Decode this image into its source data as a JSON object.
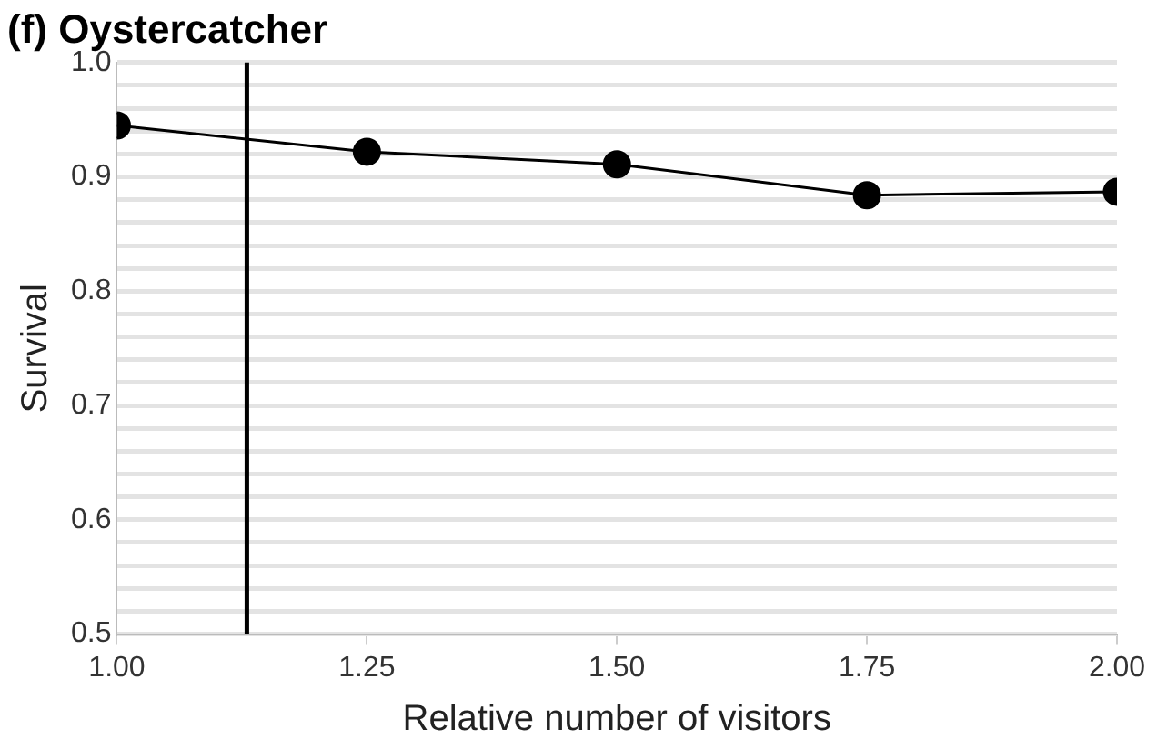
{
  "chart_data": {
    "type": "line",
    "title": "(f) Oystercatcher",
    "xlabel": "Relative number of visitors",
    "ylabel": "Survival",
    "x": [
      1.0,
      1.25,
      1.5,
      1.75,
      2.0
    ],
    "series": [
      {
        "color": "#000000",
        "values": [
          0.945,
          0.922,
          0.911,
          0.884,
          0.887
        ]
      }
    ],
    "xlim": [
      1.0,
      2.0
    ],
    "xticks": [
      {
        "value": 1.0,
        "label": "1.00"
      },
      {
        "value": 1.25,
        "label": "1.25"
      },
      {
        "value": 1.5,
        "label": "1.50"
      },
      {
        "value": 1.75,
        "label": "1.75"
      },
      {
        "value": 2.0,
        "label": "2.00"
      }
    ],
    "ylim": [
      0.5,
      1.0
    ],
    "yticks": [
      0.5,
      {
        "value": 0.52,
        "label": null
      },
      {
        "value": 0.54,
        "label": null
      },
      {
        "value": 0.56,
        "label": null
      },
      {
        "value": 0.58,
        "label": null
      },
      0.6,
      {
        "value": 0.62,
        "label": null
      },
      {
        "value": 0.64,
        "label": null
      },
      {
        "value": 0.66,
        "label": null
      },
      {
        "value": 0.68,
        "label": null
      },
      0.7,
      {
        "value": 0.72,
        "label": null
      },
      {
        "value": 0.74,
        "label": null
      },
      {
        "value": 0.76,
        "label": null
      },
      {
        "value": 0.78,
        "label": null
      },
      0.8,
      {
        "value": 0.82,
        "label": null
      },
      {
        "value": 0.84,
        "label": null
      },
      {
        "value": 0.86,
        "label": null
      },
      {
        "value": 0.88,
        "label": null
      },
      0.9,
      {
        "value": 0.92,
        "label": null
      },
      {
        "value": 0.94,
        "label": null
      },
      {
        "value": 0.96,
        "label": null
      },
      {
        "value": 0.98,
        "label": null
      },
      {
        "value": 1.0,
        "label": "1.0"
      }
    ],
    "ref_lines": [
      {
        "axis": "x",
        "value": 1.13,
        "color": "#000000"
      }
    ],
    "grid": "y",
    "legend": false,
    "marker": "circle",
    "line_style": "solid"
  }
}
